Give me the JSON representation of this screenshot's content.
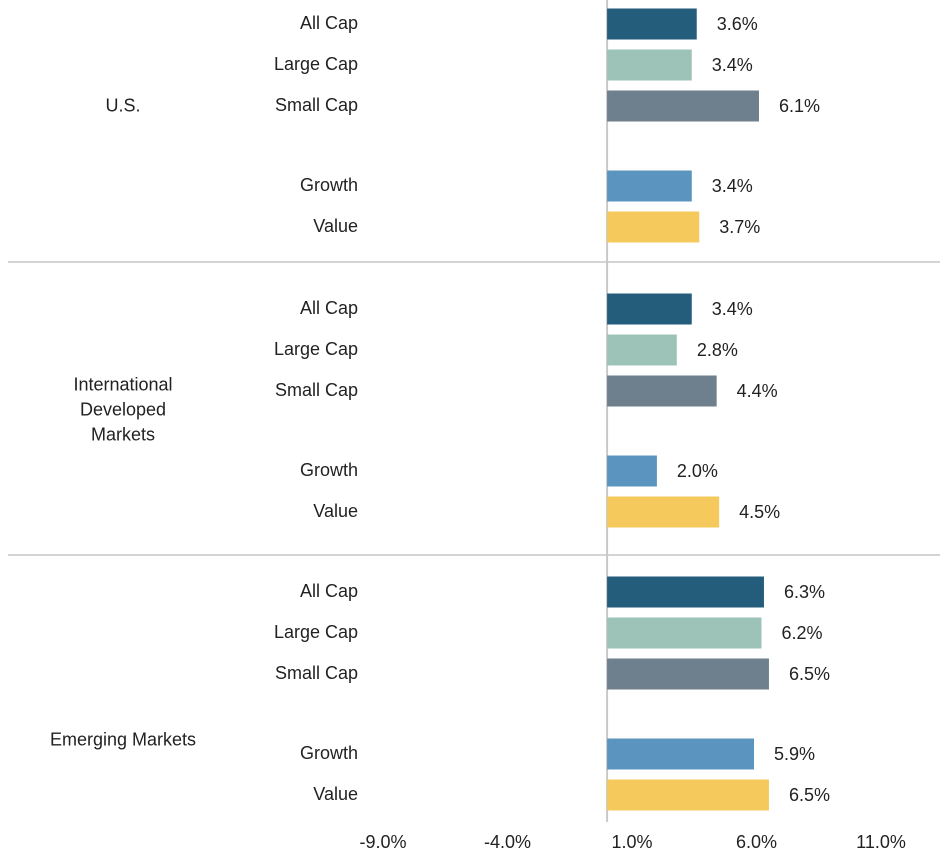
{
  "chart_data": {
    "type": "grouped-bar",
    "colors": [
      "#245c7c",
      "#9dc3b9",
      "#6e7f8d",
      "#5b95bf",
      "#f5c95c"
    ],
    "groups": [
      {
        "name": "U.S.",
        "categories": [
          "All Cap",
          "Large Cap",
          "Small Cap",
          "Growth",
          "Value"
        ],
        "values": [
          3.6,
          3.4,
          6.1,
          3.4,
          3.7
        ],
        "value_labels": [
          "3.6%",
          "3.4%",
          "6.1%",
          "3.4%",
          "3.7%"
        ]
      },
      {
        "name": "International Developed Markets",
        "categories": [
          "All Cap",
          "Large Cap",
          "Small Cap",
          "Growth",
          "Value"
        ],
        "values": [
          3.4,
          2.8,
          4.4,
          2.0,
          4.5
        ],
        "value_labels": [
          "3.4%",
          "2.8%",
          "4.4%",
          "2.0%",
          "4.5%"
        ]
      },
      {
        "name": "Emerging Markets",
        "categories": [
          "All Cap",
          "Large Cap",
          "Small Cap",
          "Growth",
          "Value"
        ],
        "values": [
          6.3,
          6.2,
          6.5,
          5.9,
          6.5
        ],
        "value_labels": [
          "6.3%",
          "6.2%",
          "6.5%",
          "5.9%",
          "6.5%"
        ]
      }
    ],
    "xlim": [
      -9,
      11
    ],
    "xticks": [
      {
        "value": -9,
        "label": "-9.0%"
      },
      {
        "value": -4,
        "label": "-4.0%"
      },
      {
        "value": 1,
        "label": "1.0%"
      },
      {
        "value": 6,
        "label": "6.0%"
      },
      {
        "value": 11,
        "label": "11.0%"
      }
    ]
  }
}
